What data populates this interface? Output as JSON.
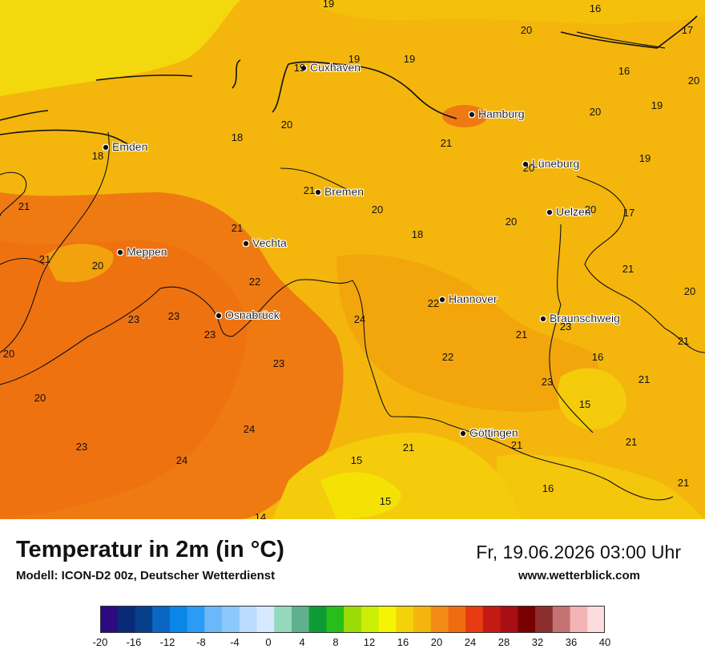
{
  "footer": {
    "title": "Temperatur in 2m (in °C)",
    "model": "Modell: ICON-D2 00z, Deutscher Wetterdienst",
    "datetime": "Fr, 19.06.2026 03:00 Uhr",
    "website": "www.wetterblick.com"
  },
  "colorbar": {
    "ticks": [
      "-20",
      "-16",
      "-12",
      "-8",
      "-4",
      "0",
      "4",
      "8",
      "12",
      "16",
      "20",
      "24",
      "28",
      "32",
      "36",
      "40"
    ],
    "colors": [
      "#2c0a80",
      "#0a2a78",
      "#063f8a",
      "#0a66c2",
      "#0a86e6",
      "#2b9cf5",
      "#6ab8fa",
      "#8cc8fb",
      "#b9dcfd",
      "#d6e9fe",
      "#94d9bd",
      "#5fb08c",
      "#0c9b35",
      "#27bd1a",
      "#9bdc07",
      "#cbee07",
      "#f4f404",
      "#f4d20a",
      "#f4b60c",
      "#f28c14",
      "#f06c10",
      "#e63a10",
      "#c41a14",
      "#a80e14",
      "#780000",
      "#8c2e2e",
      "#c47272",
      "#f2b4b4",
      "#fcdcdc"
    ]
  },
  "cities": [
    {
      "name": "Cuxhaven"
    },
    {
      "name": "Hamburg"
    },
    {
      "name": "Emden"
    },
    {
      "name": "Lüneburg"
    },
    {
      "name": "Bremen"
    },
    {
      "name": "Uelzen"
    },
    {
      "name": "Vechta"
    },
    {
      "name": "Meppen"
    },
    {
      "name": "Hannover"
    },
    {
      "name": "Osnabrück"
    },
    {
      "name": "Braunschweig"
    },
    {
      "name": "Göttingen"
    }
  ],
  "values": [
    "19",
    "16",
    "20",
    "19",
    "19",
    "19",
    "17",
    "16",
    "20",
    "19",
    "20",
    "18",
    "20",
    "21",
    "19",
    "18",
    "20",
    "21",
    "20",
    "20",
    "17",
    "21",
    "18",
    "21",
    "21",
    "20",
    "20",
    "22",
    "21",
    "20",
    "22",
    "23",
    "23",
    "24",
    "23",
    "21",
    "23",
    "20",
    "22",
    "16",
    "21",
    "23",
    "20",
    "15",
    "21",
    "24",
    "23",
    "21",
    "24",
    "15",
    "21",
    "21",
    "23",
    "16",
    "15",
    "14",
    "21"
  ],
  "palette": {
    "c15": "#f4d80e",
    "c20": "#f4b60c",
    "c22": "#f2a20c",
    "c24": "#ef7a12",
    "c16": "#f4cc0c"
  }
}
